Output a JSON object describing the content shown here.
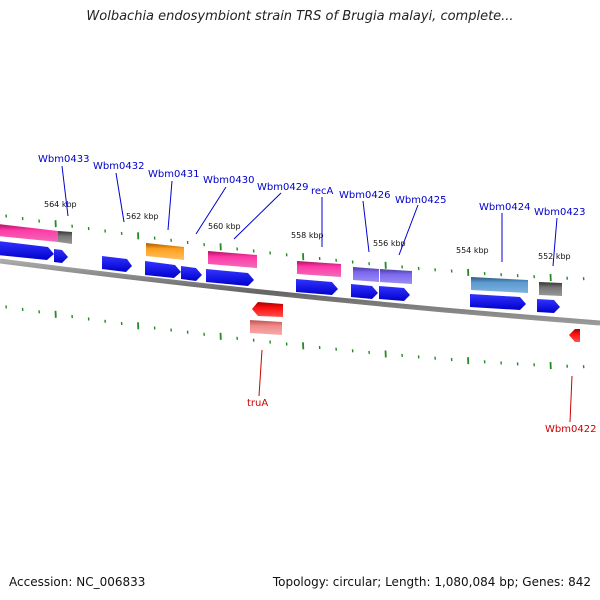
{
  "title": "Wolbachia endosymbiont strain TRS of Brugia malayi, complete...",
  "accession": "Accession: NC_006833",
  "summary": "Topology: circular; Length: 1,080,084 bp; Genes: 842",
  "scale_ticks": [
    "564 kbp",
    "562 kbp",
    "560 kbp",
    "558 kbp",
    "556 kbp",
    "554 kbp",
    "552 kbp"
  ],
  "gene_labels": {
    "forward": [
      "Wbm0433",
      "Wbm0432",
      "Wbm0431",
      "Wbm0430",
      "Wbm0429",
      "recA",
      "Wbm0426",
      "Wbm0425",
      "Wbm0424",
      "Wbm0423"
    ],
    "reverse": [
      "truA",
      "Wbm0422"
    ]
  },
  "colors": {
    "forward_label": "#0000cc",
    "reverse_label": "#cc0000",
    "cds_blue": "#0000ee",
    "pink": "#ee1c8c",
    "orange": "#f39c12",
    "purple": "#6a5acd",
    "steel": "#4682b4",
    "gray": "#555555",
    "red": "#ee0000",
    "light_red": "#ee7b7b",
    "tick_green": "#228b22",
    "backbone": "#777777"
  }
}
